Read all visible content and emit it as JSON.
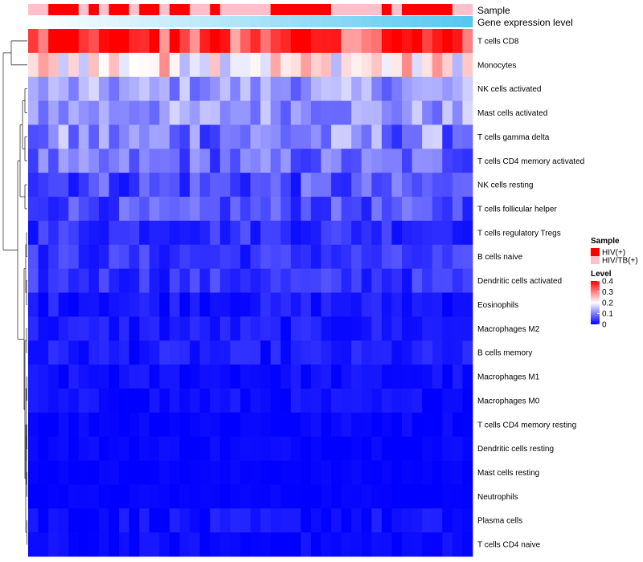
{
  "chart_data": {
    "type": "heatmap",
    "annotation_tracks": [
      {
        "name": "Sample"
      },
      {
        "name": "Gene expression level"
      }
    ],
    "rows": [
      "T cells CD8",
      "Monocytes",
      "NK cells activated",
      "Mast cells activated",
      "T cells gamma delta",
      "T cells CD4 memory activated",
      "NK cells resting",
      "T cells follicular helper",
      "T cells regulatory  Tregs",
      "B cells naive",
      "Dendritic cells activated",
      "Eosinophils",
      "Macrophages M2",
      "B cells memory",
      "Macrophages M1",
      "Macrophages M0",
      "T cells CD4 memory resting",
      "Dendritic cells resting",
      "Mast cells resting",
      "Neutrophils",
      "Plasma cells",
      "T cells CD4 naive"
    ],
    "n_columns": 44,
    "sample_groups": [
      "HIV/TB(+)",
      "HIV/TB(+)",
      "HIV(+)",
      "HIV(+)",
      "HIV(+)",
      "HIV/TB(+)",
      "HIV(+)",
      "HIV/TB(+)",
      "HIV(+)",
      "HIV(+)",
      "HIV/TB(+)",
      "HIV(+)",
      "HIV(+)",
      "HIV/TB(+)",
      "HIV(+)",
      "HIV(+)",
      "HIV/TB(+)",
      "HIV/TB(+)",
      "HIV(+)",
      "HIV/TB(+)",
      "HIV/TB(+)",
      "HIV/TB(+)",
      "HIV/TB(+)",
      "HIV/TB(+)",
      "HIV(+)",
      "HIV(+)",
      "HIV(+)",
      "HIV(+)",
      "HIV(+)",
      "HIV(+)",
      "HIV/TB(+)",
      "HIV/TB(+)",
      "HIV/TB(+)",
      "HIV/TB(+)",
      "HIV/TB(+)",
      "HIV(+)",
      "HIV/TB(+)",
      "HIV(+)",
      "HIV(+)",
      "HIV(+)",
      "HIV(+)",
      "HIV(+)",
      "HIV/TB(+)",
      "HIV/TB(+)"
    ],
    "row_value_profiles": {
      "base": [
        0.33,
        0.22,
        0.12,
        0.12,
        0.1,
        0.08,
        0.06,
        0.06,
        0.04,
        0.04,
        0.04,
        0.02,
        0.02,
        0.02,
        0.01,
        0.01,
        0.005,
        0.005,
        0.003,
        0.003,
        0.01,
        0.005
      ],
      "spread": [
        0.08,
        0.08,
        0.05,
        0.05,
        0.07,
        0.05,
        0.05,
        0.04,
        0.03,
        0.03,
        0.03,
        0.02,
        0.02,
        0.02,
        0.015,
        0.015,
        0.01,
        0.01,
        0.005,
        0.005,
        0.02,
        0.015
      ]
    },
    "gene_expression_level": {
      "min_color": "#ffffff",
      "max_color": "#56c8f0"
    },
    "legend": {
      "sample": {
        "title": "Sample",
        "entries": [
          {
            "label": "HIV(+)",
            "color": "#ff0000"
          },
          {
            "label": "HIV/TB(+)",
            "color": "#ffc0cb"
          }
        ]
      },
      "level": {
        "title": "Level",
        "ticks": [
          "0.4",
          "0.3",
          "0.2",
          "0.1",
          "0"
        ],
        "tick_values": [
          0.4,
          0.3,
          0.2,
          0.1,
          0
        ],
        "range": [
          0,
          0.4
        ]
      }
    },
    "colors": {
      "low": "#0000ff",
      "mid": "#ffffff",
      "high": "#ff0000",
      "dendrogram": "#333333"
    },
    "row_dendrogram": true
  }
}
